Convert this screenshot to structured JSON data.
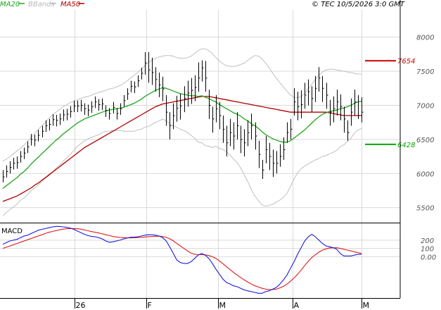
{
  "legend": [
    {
      "label": "MA20",
      "color": "#1ea51e"
    },
    {
      "label": "BBands",
      "color": "#b8b8b8"
    },
    {
      "label": "MA50",
      "color": "#b00000"
    }
  ],
  "copyright": "© TEC 10/5/2026 3:0 GMT",
  "colors": {
    "price": "#000000",
    "ma20": "#1ea51e",
    "ma50": "#b00000",
    "bbands": "#c0c0c0",
    "macd": "#1a1adc",
    "signal": "#dc1a1a",
    "grid": "#d9d9d9",
    "axis_line": "#000000"
  },
  "main_axis": {
    "ticks": [
      "8000",
      "7500",
      "7000",
      "6500",
      "6000",
      "5500"
    ],
    "tick_values": [
      8000,
      7500,
      7000,
      6500,
      6000,
      5500
    ],
    "ylim": [
      5300,
      8400
    ]
  },
  "resistance": {
    "value": 7654,
    "label": "7654",
    "color": "#cc0000"
  },
  "support": {
    "value": 6428,
    "label": "6428",
    "color": "#00aa00"
  },
  "macd_panel": {
    "title": "MACD",
    "ticks": [
      "200",
      "100",
      "0.00"
    ],
    "tick_values": [
      200,
      100,
      0
    ],
    "ylim": [
      -480,
      360
    ]
  },
  "time_axis": [
    "26",
    "F",
    "M",
    "A",
    "M"
  ],
  "chart_data": {
    "type": "line",
    "title": "",
    "price_series": {
      "close": [
        5950,
        6030,
        6090,
        6150,
        6160,
        6250,
        6300,
        6390,
        6500,
        6490,
        6560,
        6620,
        6700,
        6720,
        6790,
        6780,
        6800,
        6860,
        6870,
        6910,
        6990,
        6990,
        7000,
        6950,
        6930,
        6980,
        7050,
        7010,
        7020,
        6920,
        6880,
        6970,
        6880,
        6950,
        7070,
        7170,
        7280,
        7270,
        7360,
        7470,
        7620,
        7520,
        7480,
        7380,
        7300,
        7240,
        6900,
        6700,
        6850,
        6960,
        6990,
        7100,
        7180,
        7220,
        7260,
        7400,
        7550,
        7400,
        7000,
        6800,
        6950,
        6850,
        6650,
        6450,
        6600,
        6550,
        6700,
        6500,
        6450,
        6600,
        6700,
        6550,
        6280,
        6050,
        6350,
        6250,
        6150,
        6150,
        6250,
        6350,
        6600,
        6650,
        7050,
        6980,
        7010,
        7150,
        7200,
        7100,
        7250,
        7400,
        7250,
        7150,
        6900,
        6950,
        7050,
        6980,
        6800,
        6600,
        6900,
        7050,
        6850,
        6900
      ],
      "high": [
        6050,
        6120,
        6180,
        6230,
        6250,
        6330,
        6380,
        6470,
        6580,
        6570,
        6640,
        6700,
        6780,
        6800,
        6870,
        6860,
        6880,
        6940,
        6950,
        6990,
        7070,
        7070,
        7080,
        7030,
        7010,
        7060,
        7130,
        7090,
        7100,
        7000,
        6960,
        7050,
        6960,
        7030,
        7150,
        7250,
        7360,
        7350,
        7440,
        7550,
        7780,
        7780,
        7700,
        7560,
        7480,
        7420,
        7150,
        6900,
        7030,
        7140,
        7170,
        7280,
        7360,
        7400,
        7440,
        7630,
        7660,
        7650,
        7230,
        6980,
        7150,
        7050,
        6850,
        6700,
        6800,
        6750,
        6900,
        6700,
        6650,
        6780,
        6880,
        6750,
        6480,
        6200,
        6550,
        6450,
        6350,
        6330,
        6430,
        6530,
        6750,
        6800,
        7250,
        7200,
        7220,
        7330,
        7380,
        7280,
        7430,
        7560,
        7430,
        7330,
        7080,
        7130,
        7230,
        7160,
        6980,
        6780,
        7100,
        7230,
        7150,
        7120
      ],
      "low": [
        5870,
        5940,
        6000,
        6060,
        6070,
        6160,
        6210,
        6300,
        6410,
        6400,
        6470,
        6530,
        6610,
        6630,
        6700,
        6690,
        6710,
        6770,
        6780,
        6820,
        6900,
        6900,
        6910,
        6860,
        6840,
        6890,
        6960,
        6920,
        6930,
        6830,
        6790,
        6880,
        6790,
        6860,
        6980,
        7080,
        7190,
        7180,
        7270,
        7380,
        7450,
        7330,
        7300,
        7200,
        7120,
        7060,
        6700,
        6500,
        6650,
        6760,
        6790,
        6900,
        6980,
        7020,
        7060,
        7200,
        7350,
        7200,
        6800,
        6600,
        6750,
        6650,
        6450,
        6250,
        6400,
        6350,
        6500,
        6300,
        6250,
        6400,
        6500,
        6350,
        6080,
        5920,
        6150,
        6050,
        5950,
        6000,
        6100,
        6200,
        6450,
        6500,
        6850,
        6780,
        6810,
        6950,
        7000,
        6900,
        7050,
        7200,
        7050,
        6950,
        6700,
        6750,
        6850,
        6780,
        6600,
        6480,
        6700,
        6850,
        6800,
        6750
      ],
      "ma20": [
        5780,
        5820,
        5860,
        5900,
        5940,
        5990,
        6030,
        6080,
        6140,
        6190,
        6240,
        6290,
        6340,
        6390,
        6440,
        6490,
        6530,
        6580,
        6620,
        6660,
        6700,
        6740,
        6770,
        6800,
        6820,
        6840,
        6860,
        6880,
        6900,
        6920,
        6930,
        6940,
        6950,
        6960,
        6970,
        6990,
        7010,
        7030,
        7060,
        7090,
        7130,
        7160,
        7190,
        7220,
        7240,
        7260,
        7250,
        7230,
        7210,
        7190,
        7170,
        7160,
        7150,
        7140,
        7140,
        7130,
        7140,
        7120,
        7100,
        7070,
        7050,
        7010,
        6980,
        6950,
        6920,
        6890,
        6870,
        6840,
        6800,
        6770,
        6730,
        6700,
        6660,
        6610,
        6570,
        6540,
        6510,
        6490,
        6470,
        6460,
        6460,
        6480,
        6520,
        6560,
        6600,
        6640,
        6690,
        6740,
        6790,
        6830,
        6870,
        6890,
        6910,
        6920,
        6930,
        6950,
        6960,
        6980,
        7000,
        7030,
        7050,
        7060
      ],
      "ma50": [
        5590,
        5610,
        5630,
        5650,
        5670,
        5700,
        5730,
        5760,
        5790,
        5830,
        5860,
        5900,
        5940,
        5980,
        6020,
        6060,
        6100,
        6140,
        6180,
        6220,
        6260,
        6300,
        6340,
        6380,
        6410,
        6440,
        6470,
        6500,
        6530,
        6560,
        6590,
        6620,
        6650,
        6680,
        6710,
        6740,
        6770,
        6800,
        6830,
        6860,
        6890,
        6920,
        6950,
        6980,
        7000,
        7020,
        7030,
        7040,
        7050,
        7060,
        7070,
        7080,
        7090,
        7100,
        7110,
        7120,
        7130,
        7130,
        7130,
        7120,
        7110,
        7100,
        7090,
        7080,
        7070,
        7060,
        7050,
        7040,
        7030,
        7020,
        7010,
        7000,
        6990,
        6980,
        6970,
        6960,
        6950,
        6940,
        6930,
        6920,
        6910,
        6900,
        6900,
        6900,
        6900,
        6900,
        6900,
        6900,
        6900,
        6900,
        6900,
        6900,
        6890,
        6880,
        6870,
        6860,
        6850,
        6850,
        6850,
        6850,
        6850,
        6850
      ],
      "bb_upper": [
        6180,
        6210,
        6250,
        6290,
        6330,
        6370,
        6420,
        6470,
        6530,
        6590,
        6650,
        6700,
        6750,
        6810,
        6860,
        6900,
        6940,
        6980,
        7010,
        7040,
        7060,
        7080,
        7100,
        7120,
        7130,
        7150,
        7170,
        7190,
        7200,
        7220,
        7240,
        7250,
        7270,
        7290,
        7320,
        7360,
        7400,
        7440,
        7480,
        7530,
        7580,
        7630,
        7660,
        7690,
        7710,
        7720,
        7730,
        7730,
        7720,
        7700,
        7690,
        7690,
        7700,
        7720,
        7760,
        7800,
        7830,
        7830,
        7800,
        7760,
        7700,
        7650,
        7610,
        7580,
        7570,
        7570,
        7580,
        7600,
        7620,
        7660,
        7700,
        7730,
        7720,
        7680,
        7620,
        7550,
        7470,
        7400,
        7330,
        7270,
        7210,
        7150,
        7120,
        7110,
        7130,
        7170,
        7240,
        7310,
        7380,
        7440,
        7490,
        7520,
        7530,
        7530,
        7520,
        7510,
        7500,
        7490,
        7480,
        7470,
        7460,
        7460
      ],
      "bb_lower": [
        5380,
        5430,
        5470,
        5510,
        5550,
        5610,
        5640,
        5690,
        5750,
        5790,
        5830,
        5880,
        5930,
        5970,
        6020,
        6080,
        6120,
        6180,
        6230,
        6280,
        6340,
        6400,
        6440,
        6480,
        6510,
        6530,
        6550,
        6570,
        6600,
        6620,
        6620,
        6630,
        6630,
        6630,
        6620,
        6620,
        6620,
        6620,
        6640,
        6650,
        6680,
        6690,
        6720,
        6750,
        6770,
        6800,
        6770,
        6730,
        6700,
        6680,
        6650,
        6630,
        6600,
        6560,
        6520,
        6460,
        6450,
        6410,
        6400,
        6380,
        6400,
        6370,
        6350,
        6320,
        6270,
        6210,
        6160,
        6080,
        5980,
        5880,
        5760,
        5670,
        5600,
        5540,
        5520,
        5530,
        5550,
        5580,
        5610,
        5650,
        5710,
        5810,
        5920,
        6010,
        6070,
        6110,
        6140,
        6170,
        6200,
        6220,
        6250,
        6260,
        6290,
        6310,
        6340,
        6390,
        6420,
        6470,
        6520,
        6590,
        6640,
        6660
      ]
    },
    "macd_series": {
      "macd": [
        150,
        170,
        190,
        200,
        210,
        230,
        250,
        260,
        280,
        300,
        320,
        330,
        340,
        350,
        360,
        365,
        365,
        360,
        355,
        345,
        330,
        310,
        290,
        270,
        255,
        245,
        240,
        230,
        215,
        190,
        175,
        180,
        190,
        200,
        215,
        225,
        235,
        235,
        240,
        250,
        260,
        265,
        265,
        260,
        250,
        230,
        190,
        120,
        40,
        -40,
        -70,
        -80,
        -80,
        -60,
        -20,
        20,
        40,
        20,
        -20,
        -80,
        -150,
        -210,
        -270,
        -310,
        -330,
        -350,
        -360,
        -380,
        -400,
        -410,
        -420,
        -430,
        -440,
        -440,
        -420,
        -410,
        -390,
        -370,
        -330,
        -280,
        -220,
        -140,
        -60,
        30,
        110,
        190,
        240,
        270,
        240,
        200,
        160,
        130,
        120,
        110,
        90,
        40,
        10,
        10,
        10,
        20,
        30,
        30
      ],
      "signal": [
        100,
        115,
        130,
        145,
        160,
        175,
        190,
        205,
        220,
        235,
        250,
        265,
        280,
        295,
        305,
        315,
        325,
        333,
        338,
        340,
        340,
        338,
        332,
        323,
        313,
        303,
        295,
        286,
        276,
        265,
        255,
        245,
        238,
        233,
        230,
        228,
        228,
        229,
        231,
        234,
        238,
        242,
        245,
        247,
        247,
        244,
        234,
        217,
        191,
        160,
        130,
        100,
        70,
        45,
        30,
        25,
        25,
        22,
        15,
        0,
        -20,
        -50,
        -85,
        -120,
        -155,
        -190,
        -220,
        -250,
        -280,
        -305,
        -330,
        -350,
        -365,
        -380,
        -390,
        -395,
        -395,
        -390,
        -375,
        -355,
        -330,
        -295,
        -255,
        -210,
        -160,
        -105,
        -55,
        -10,
        25,
        55,
        80,
        95,
        105,
        108,
        108,
        100,
        90,
        80,
        70,
        60,
        50,
        40
      ]
    }
  }
}
